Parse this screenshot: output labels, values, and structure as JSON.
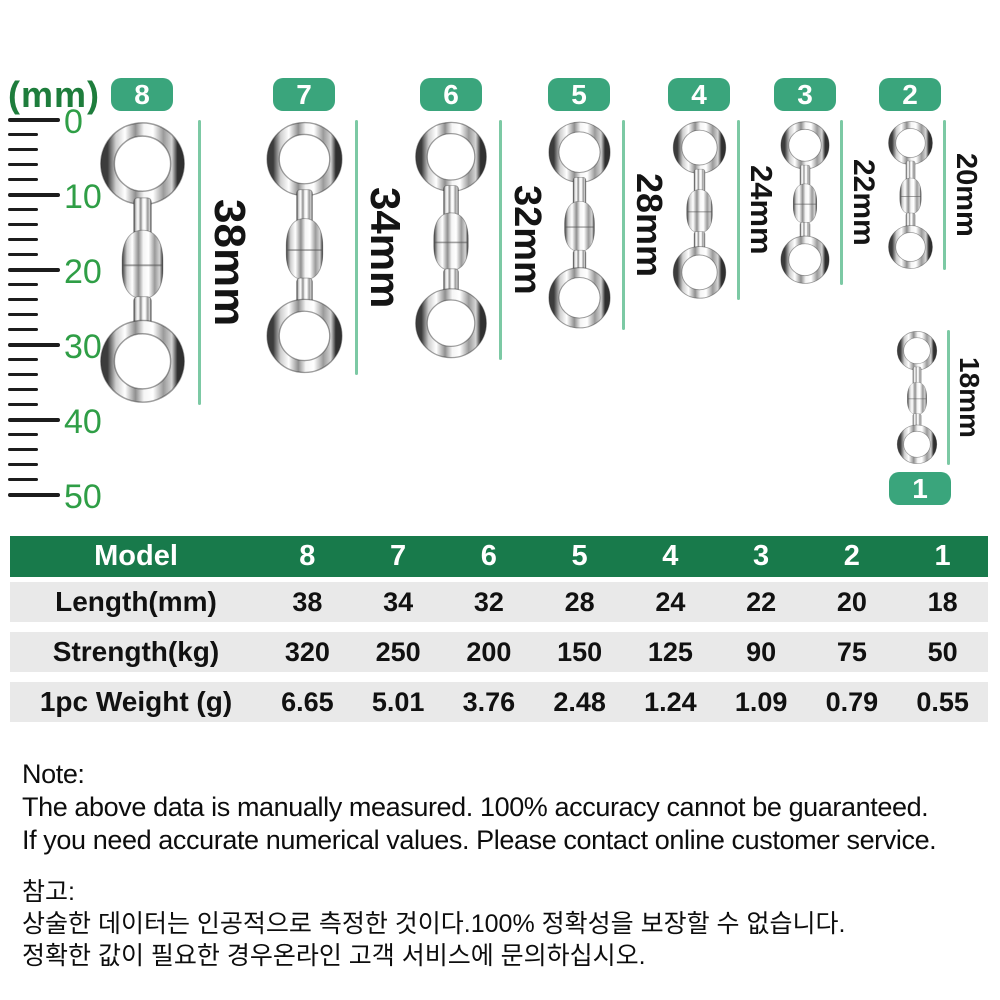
{
  "ruler": {
    "unit_label": "(mm)",
    "max_mm": 50,
    "minor_step_mm": 2,
    "major_step_mm": 10,
    "major_labels": [
      "0",
      "10",
      "20",
      "30",
      "40",
      "50"
    ]
  },
  "swivels": [
    {
      "model": "8",
      "length_mm": 38,
      "length_label": "38mm"
    },
    {
      "model": "7",
      "length_mm": 34,
      "length_label": "34mm"
    },
    {
      "model": "6",
      "length_mm": 32,
      "length_label": "32mm"
    },
    {
      "model": "5",
      "length_mm": 28,
      "length_label": "28mm"
    },
    {
      "model": "4",
      "length_mm": 24,
      "length_label": "24mm"
    },
    {
      "model": "3",
      "length_mm": 22,
      "length_label": "22mm"
    },
    {
      "model": "2",
      "length_mm": 20,
      "length_label": "20mm"
    },
    {
      "model": "1",
      "length_mm": 18,
      "length_label": "18mm"
    }
  ],
  "table": {
    "header_label": "Model",
    "model_columns": [
      "8",
      "7",
      "6",
      "5",
      "4",
      "3",
      "2",
      "1"
    ],
    "rows": [
      {
        "label": "Length(mm)",
        "values": [
          "38",
          "34",
          "32",
          "28",
          "24",
          "22",
          "20",
          "18"
        ]
      },
      {
        "label": "Strength(kg)",
        "values": [
          "320",
          "250",
          "200",
          "150",
          "125",
          "90",
          "75",
          "50"
        ]
      },
      {
        "label": "1pc Weight (g)",
        "values": [
          "6.65",
          "5.01",
          "3.76",
          "2.48",
          "1.24",
          "1.09",
          "0.79",
          "0.55"
        ]
      }
    ]
  },
  "notes_en": {
    "title": "Note:",
    "lines": [
      "The above data is manually measured. 100% accuracy cannot be guaranteed.",
      "If you need accurate numerical values. Please contact online customer service."
    ]
  },
  "notes_ko": {
    "title": "참고:",
    "lines": [
      "상술한 데이터는 인공적으로 측정한 것이다.100% 정확성을 보장할 수 없습니다.",
      "정확한 값이 필요한 경우온라인 고객 서비스에 문의하십시오."
    ]
  },
  "colors": {
    "badge_green": "#3aa57c",
    "table_header_green": "#187a4b",
    "ruler_unit_green": "#1e7d3c",
    "ruler_label_green": "#2f9e46",
    "measure_line_green": "#7cc9a4",
    "row_gray": "#e9e9e9",
    "tick_black": "#1c1c1c"
  }
}
